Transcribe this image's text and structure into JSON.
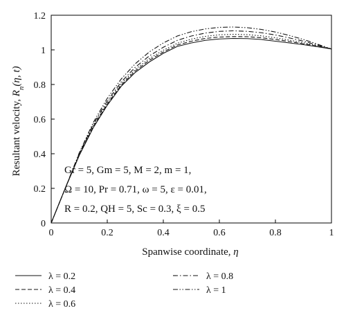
{
  "chart_data": {
    "type": "line",
    "xlabel_text": "Spanwise coordinate,",
    "xlabel_var": "η",
    "ylabel_text": "Resultant velocity,",
    "ylabel_var": "R",
    "ylabel_sub": "n",
    "ylabel_args": "(η, t)",
    "xlim": [
      0,
      1
    ],
    "ylim": [
      0,
      1.2
    ],
    "x_ticks": [
      "0",
      "0.2",
      "0.4",
      "0.6",
      "0.8",
      "1"
    ],
    "y_ticks": [
      "0",
      "0.2",
      "0.4",
      "0.6",
      "0.8",
      "1",
      "1.2"
    ],
    "grid": false,
    "legend_position": "bottom",
    "annotations": [
      "Gr = 5, Gm = 5, M = 2, m = 1,",
      "Ω = 10, Pr = 0.71, ω = 5, ε = 0.01,",
      "R = 0.2, QH = 5, Sc = 0.3, ξ = 0.5"
    ],
    "series": [
      {
        "name": "λ = 0.2",
        "dash": "solid",
        "x": [
          0,
          0.05,
          0.1,
          0.15,
          0.2,
          0.25,
          0.3,
          0.35,
          0.4,
          0.45,
          0.5,
          0.55,
          0.6,
          0.65,
          0.7,
          0.75,
          0.8,
          0.85,
          0.9,
          0.95,
          1.0
        ],
        "y": [
          0,
          0.2,
          0.39,
          0.55,
          0.68,
          0.79,
          0.87,
          0.93,
          0.98,
          1.02,
          1.04,
          1.055,
          1.063,
          1.066,
          1.065,
          1.06,
          1.05,
          1.04,
          1.03,
          1.018,
          1.005
        ]
      },
      {
        "name": "λ = 0.4",
        "dash": "dash",
        "x": [
          0,
          0.05,
          0.1,
          0.15,
          0.2,
          0.25,
          0.3,
          0.35,
          0.4,
          0.45,
          0.5,
          0.55,
          0.6,
          0.65,
          0.7,
          0.75,
          0.8,
          0.85,
          0.9,
          0.95,
          1.0
        ],
        "y": [
          0,
          0.2,
          0.393,
          0.556,
          0.687,
          0.797,
          0.878,
          0.94,
          0.988,
          1.028,
          1.05,
          1.066,
          1.074,
          1.077,
          1.076,
          1.07,
          1.06,
          1.048,
          1.035,
          1.021,
          1.005
        ]
      },
      {
        "name": "λ = 0.6",
        "dash": "dot",
        "x": [
          0,
          0.05,
          0.1,
          0.15,
          0.2,
          0.25,
          0.3,
          0.35,
          0.4,
          0.45,
          0.5,
          0.55,
          0.6,
          0.65,
          0.7,
          0.75,
          0.8,
          0.85,
          0.9,
          0.95,
          1.0
        ],
        "y": [
          0,
          0.2,
          0.396,
          0.562,
          0.695,
          0.805,
          0.887,
          0.95,
          0.998,
          1.038,
          1.062,
          1.078,
          1.087,
          1.09,
          1.088,
          1.081,
          1.07,
          1.056,
          1.041,
          1.024,
          1.005
        ]
      },
      {
        "name": "λ = 0.8",
        "dash": "dashdot",
        "x": [
          0,
          0.05,
          0.1,
          0.15,
          0.2,
          0.25,
          0.3,
          0.35,
          0.4,
          0.45,
          0.5,
          0.55,
          0.6,
          0.65,
          0.7,
          0.75,
          0.8,
          0.85,
          0.9,
          0.95,
          1.0
        ],
        "y": [
          0,
          0.2,
          0.4,
          0.57,
          0.705,
          0.815,
          0.9,
          0.965,
          1.015,
          1.055,
          1.08,
          1.097,
          1.107,
          1.11,
          1.107,
          1.099,
          1.086,
          1.069,
          1.05,
          1.028,
          1.005
        ]
      },
      {
        "name": "λ = 1",
        "dash": "dashdotdot",
        "x": [
          0,
          0.05,
          0.1,
          0.15,
          0.2,
          0.25,
          0.3,
          0.35,
          0.4,
          0.45,
          0.5,
          0.55,
          0.6,
          0.65,
          0.7,
          0.75,
          0.8,
          0.85,
          0.9,
          0.95,
          1.0
        ],
        "y": [
          0,
          0.2,
          0.405,
          0.58,
          0.72,
          0.832,
          0.92,
          0.988,
          1.04,
          1.08,
          1.105,
          1.121,
          1.13,
          1.132,
          1.128,
          1.118,
          1.103,
          1.083,
          1.06,
          1.033,
          1.005
        ]
      }
    ]
  }
}
